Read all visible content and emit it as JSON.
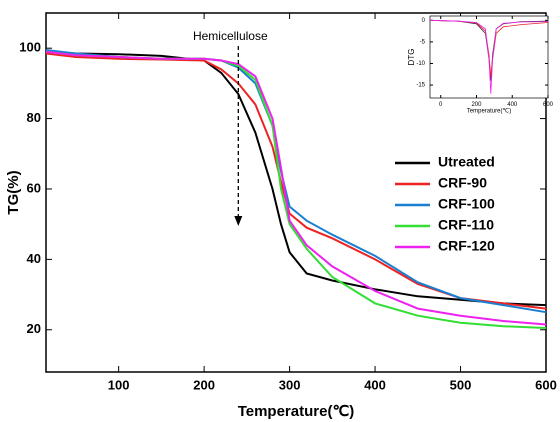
{
  "chart_data": [
    {
      "type": "line",
      "xlabel": "Temperature(℃)",
      "ylabel": "TG(%)",
      "xlim": [
        15,
        600
      ],
      "xticks": [
        100,
        200,
        300,
        400,
        500,
        600
      ],
      "ylim": [
        8,
        110
      ],
      "yticks": [
        20,
        40,
        60,
        80,
        100
      ],
      "annotations": [
        {
          "text": "Hemicellulose",
          "x": 240
        }
      ],
      "x": [
        15,
        50,
        100,
        150,
        200,
        220,
        240,
        260,
        280,
        290,
        300,
        320,
        350,
        400,
        450,
        500,
        550,
        600
      ],
      "series": [
        {
          "name": "Utreated",
          "color": "#000000",
          "values": [
            99,
            98.5,
            98.3,
            97.8,
            96.5,
            93,
            87,
            76,
            60,
            50,
            42,
            36,
            34,
            31.5,
            29.5,
            28.5,
            27.5,
            27
          ]
        },
        {
          "name": "CRF-90",
          "color": "#ee2222",
          "values": [
            98.5,
            97.5,
            97,
            96.8,
            96.5,
            94,
            90,
            84,
            72,
            62,
            53,
            49,
            46,
            40,
            33,
            29,
            27.5,
            26
          ]
        },
        {
          "name": "CRF-100",
          "color": "#1a7fd0",
          "values": [
            99.5,
            98.5,
            97.5,
            97,
            97,
            96.5,
            94.5,
            90,
            78,
            65,
            55,
            51,
            47,
            41,
            33.5,
            29,
            27,
            25
          ]
        },
        {
          "name": "CRF-110",
          "color": "#33dd33",
          "values": [
            99,
            98,
            97.5,
            97,
            97,
            96.5,
            95,
            91,
            78,
            60,
            50,
            43,
            35,
            27.5,
            24,
            22,
            21,
            20.5
          ]
        },
        {
          "name": "CRF-120",
          "color": "#ee22ee",
          "values": [
            99,
            98,
            97.5,
            97,
            97,
            96.5,
            95.5,
            92,
            80,
            66,
            51,
            44,
            38,
            31,
            26,
            24,
            22.5,
            21.5
          ]
        }
      ]
    },
    {
      "type": "line",
      "xlabel": "Temperature(℃)",
      "ylabel": "DTG",
      "xlim": [
        -60,
        600
      ],
      "xticks": [
        0,
        200,
        400,
        600
      ],
      "ylim": [
        -18,
        1
      ],
      "yticks": [
        0,
        -5,
        -10,
        -15
      ],
      "x": [
        -60,
        100,
        200,
        250,
        270,
        280,
        290,
        310,
        350,
        450,
        600
      ],
      "series": [
        {
          "color": "#333333",
          "values": [
            0,
            -0.2,
            -0.8,
            -3,
            -9,
            -14,
            -8,
            -2,
            -0.8,
            -0.3,
            -0.2
          ]
        },
        {
          "color": "#ee2222",
          "values": [
            0,
            -0.2,
            -0.6,
            -2.5,
            -8,
            -13,
            -9,
            -3,
            -1.5,
            -1,
            -0.5
          ]
        },
        {
          "color": "#ee22ee",
          "values": [
            0,
            -0.2,
            -0.5,
            -2,
            -9,
            -17,
            -9,
            -2,
            -0.7,
            -0.4,
            -0.3
          ]
        }
      ]
    }
  ]
}
